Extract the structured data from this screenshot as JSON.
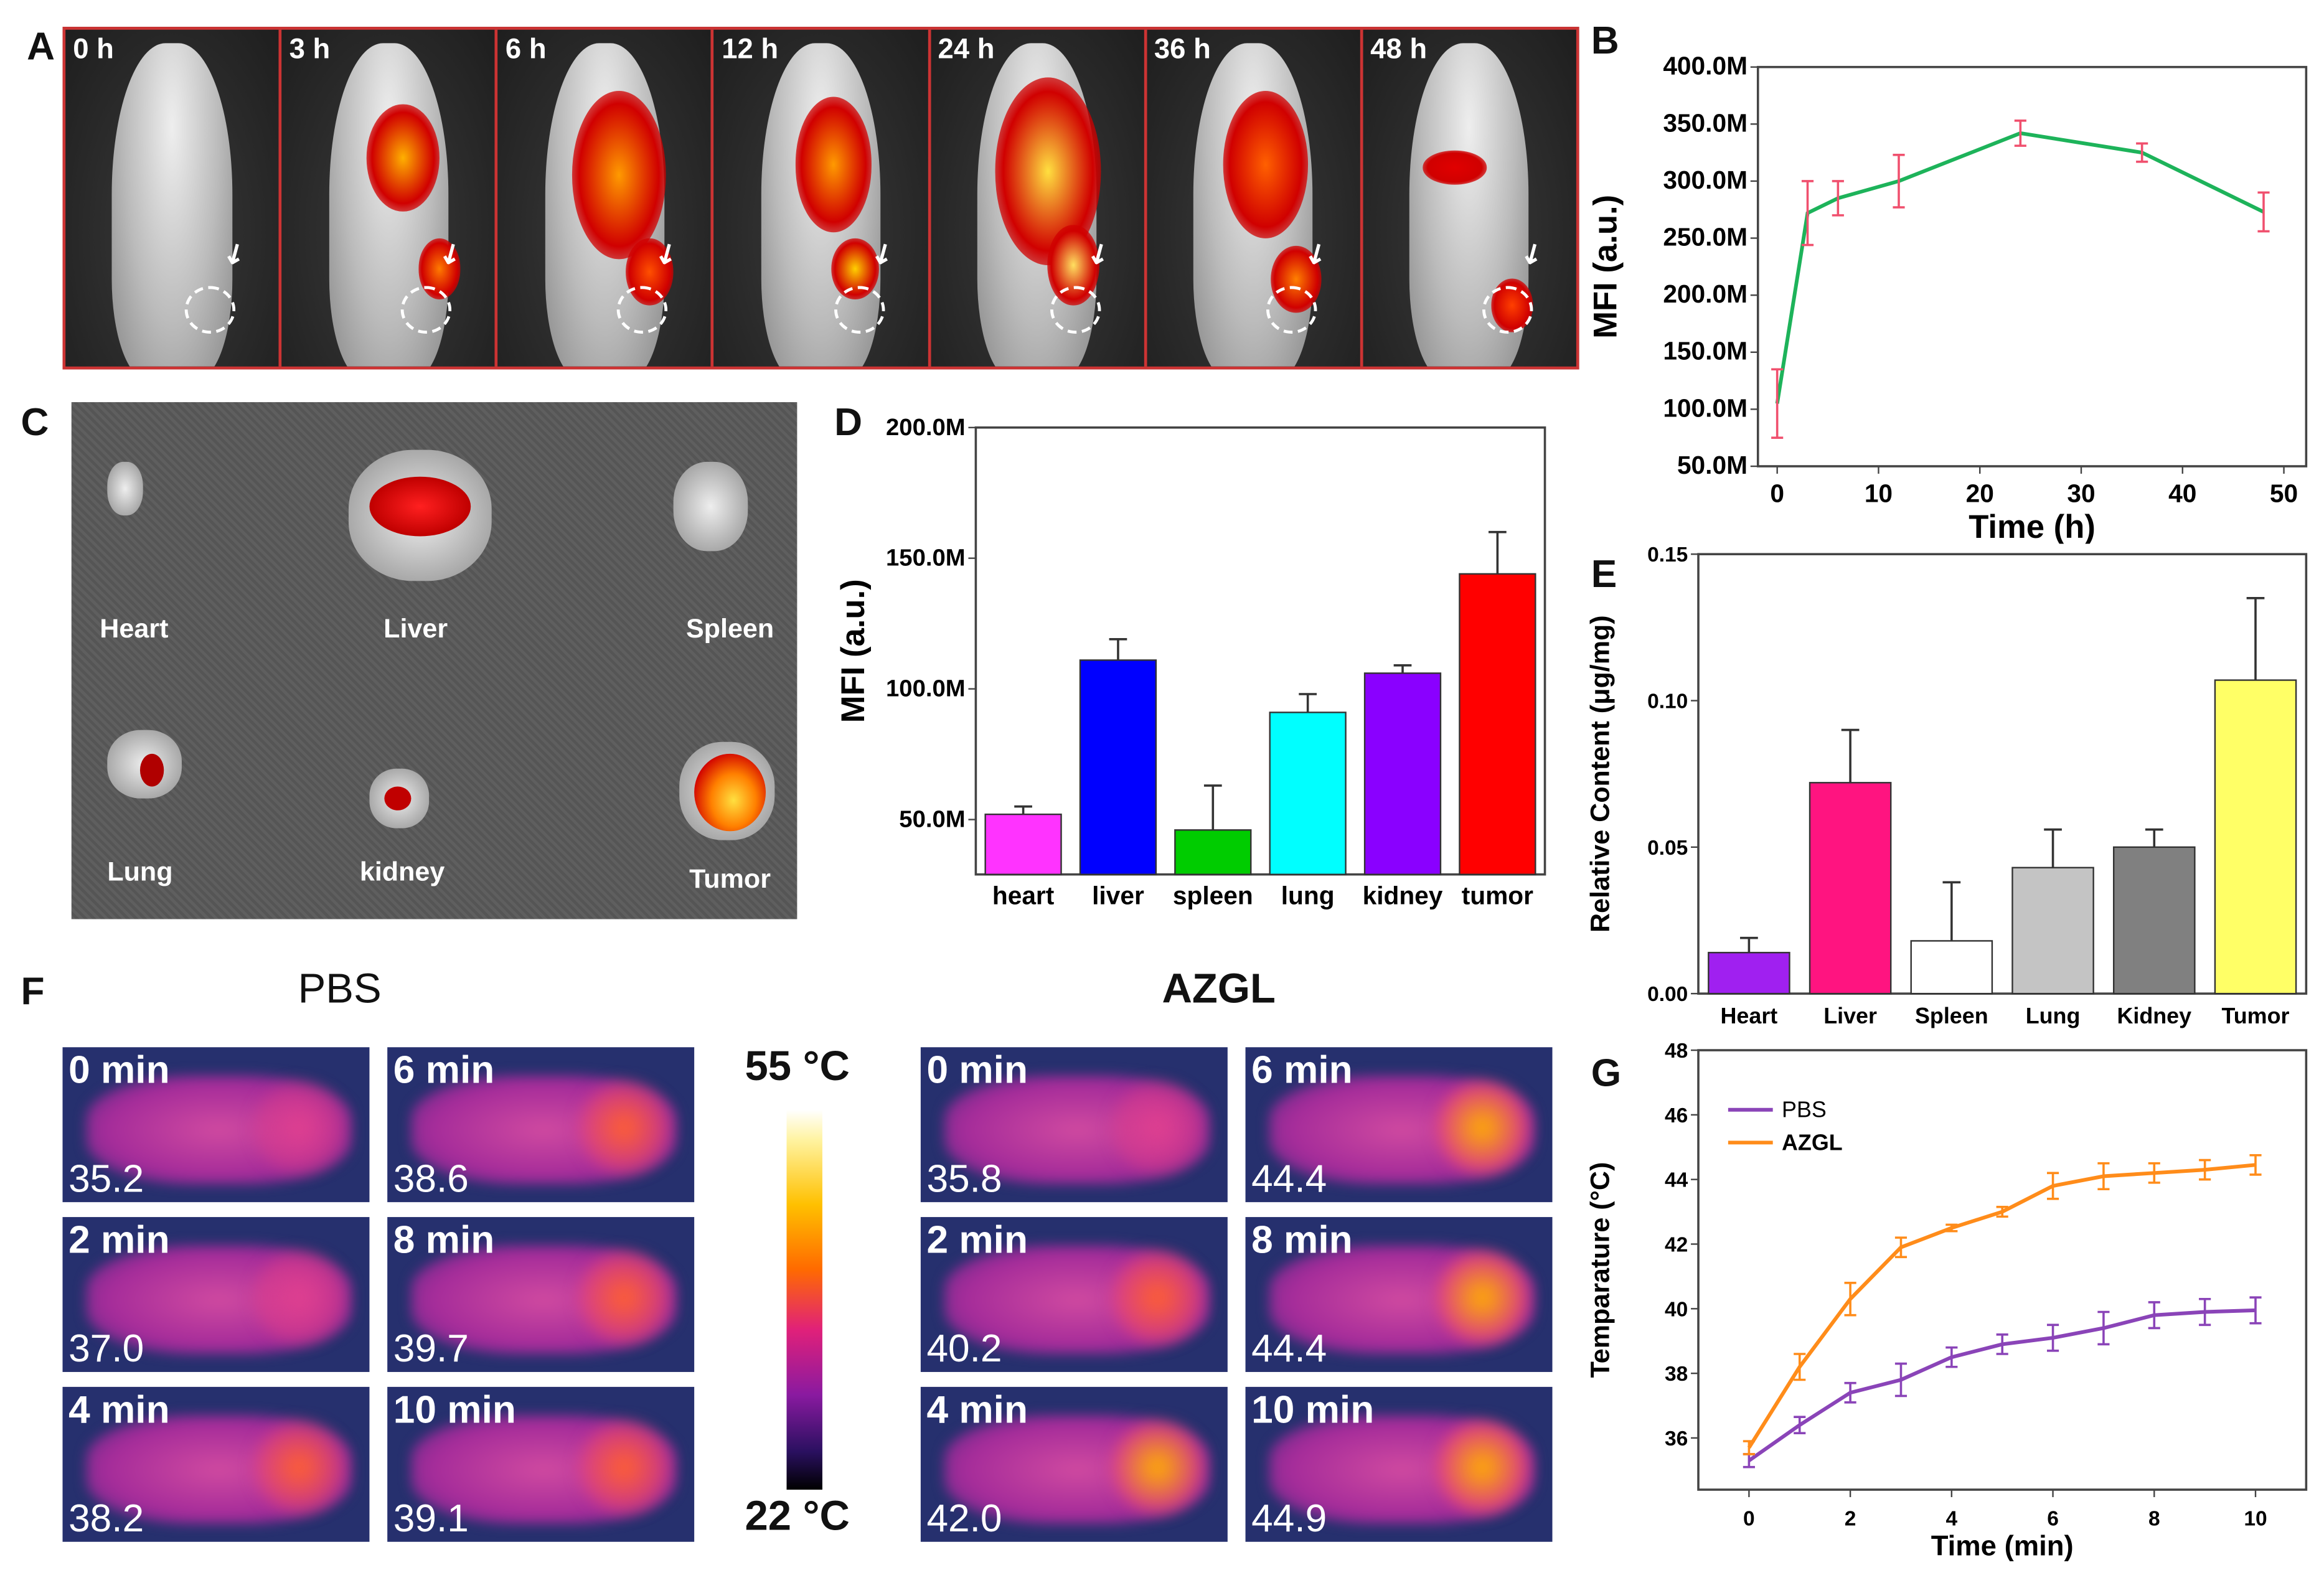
{
  "panels": {
    "A": "A",
    "B": "B",
    "C": "C",
    "D": "D",
    "E": "E",
    "F": "F",
    "G": "G"
  },
  "panelA": {
    "frames": [
      "0 h",
      "3 h",
      "6 h",
      "12 h",
      "24 h",
      "36 h",
      "48 h"
    ]
  },
  "panelC": {
    "organs": [
      "Heart",
      "Liver",
      "Spleen",
      "Lung",
      "kidney",
      "Tumor"
    ]
  },
  "panelF": {
    "pbs_title": "PBS",
    "azgl_title": "AZGL",
    "colorbar_max": "55 °C",
    "colorbar_min": "22 °C",
    "pbs": [
      {
        "time": "0 min",
        "temp": "35.2"
      },
      {
        "time": "6 min",
        "temp": "38.6"
      },
      {
        "time": "2 min",
        "temp": "37.0"
      },
      {
        "time": "8 min",
        "temp": "39.7"
      },
      {
        "time": "4 min",
        "temp": "38.2"
      },
      {
        "time": "10 min",
        "temp": "39.1"
      }
    ],
    "azgl": [
      {
        "time": "0 min",
        "temp": "35.8"
      },
      {
        "time": "6 min",
        "temp": "44.4"
      },
      {
        "time": "2 min",
        "temp": "40.2"
      },
      {
        "time": "8 min",
        "temp": "44.4"
      },
      {
        "time": "4 min",
        "temp": "42.0"
      },
      {
        "time": "10 min",
        "temp": "44.9"
      }
    ]
  },
  "chart_data": [
    {
      "id": "B",
      "type": "line",
      "xlabel": "Time (h)",
      "ylabel": "MFI (a.u.)",
      "x": [
        0,
        3,
        6,
        12,
        24,
        36,
        48
      ],
      "values": [
        105,
        272,
        285,
        300,
        342,
        325,
        273
      ],
      "errors": [
        30,
        28,
        15,
        23,
        11,
        8,
        17
      ],
      "xlim": [
        -1.9,
        52.2
      ],
      "ylim": [
        50,
        400
      ],
      "xticks": [
        0,
        10,
        20,
        30,
        40,
        50
      ],
      "yticks": [
        50,
        100,
        150,
        200,
        250,
        300,
        350,
        400
      ],
      "ytick_labels": [
        "50.0M",
        "100.0M",
        "150.0M",
        "200.0M",
        "250.0M",
        "300.0M",
        "350.0M",
        "400.0M"
      ],
      "line_color": "#1db35a",
      "error_color": "#f0506e"
    },
    {
      "id": "D",
      "type": "bar",
      "xlabel": "",
      "ylabel": "MFI (a.u.)",
      "categories": [
        "heart",
        "liver",
        "spleen",
        "lung",
        "kidney",
        "tumor"
      ],
      "values": [
        52,
        111,
        46,
        91,
        106,
        144
      ],
      "errors": [
        3,
        8,
        17,
        7,
        3,
        16
      ],
      "colors": [
        "#ff33ff",
        "#0000ff",
        "#00cc00",
        "#00ffff",
        "#8a00ff",
        "#ff0000"
      ],
      "ylim": [
        29,
        200
      ],
      "yticks": [
        50,
        100,
        150,
        200
      ],
      "ytick_labels": [
        "50.0M",
        "100.0M",
        "150.0M",
        "200.0M"
      ]
    },
    {
      "id": "E",
      "type": "bar",
      "xlabel": "",
      "ylabel": "Relative Content (μg/mg)",
      "categories": [
        "Heart",
        "Liver",
        "Spleen",
        "Lung",
        "Kidney",
        "Tumor"
      ],
      "values": [
        0.014,
        0.072,
        0.018,
        0.043,
        0.05,
        0.107
      ],
      "errors": [
        0.005,
        0.018,
        0.02,
        0.013,
        0.006,
        0.028
      ],
      "colors": [
        "#a020f0",
        "#ff1480",
        "#ffffff",
        "#c4c4c4",
        "#808080",
        "#ffff66"
      ],
      "ylim": [
        0,
        0.15
      ],
      "yticks": [
        0,
        0.05,
        0.1,
        0.15
      ],
      "ytick_labels": [
        "0.00",
        "0.05",
        "0.10",
        "0.15"
      ]
    },
    {
      "id": "G",
      "type": "line",
      "xlabel": "Time (min)",
      "ylabel": "Temparature (°C)",
      "x": [
        0,
        1,
        2,
        3,
        4,
        5,
        6,
        7,
        8,
        9,
        10
      ],
      "series": [
        {
          "name": "PBS",
          "color": "#8a44b8",
          "values": [
            35.3,
            36.4,
            37.4,
            37.8,
            38.5,
            38.9,
            39.1,
            39.4,
            39.8,
            39.9,
            39.95
          ],
          "errors": [
            0.2,
            0.25,
            0.3,
            0.5,
            0.3,
            0.3,
            0.4,
            0.5,
            0.4,
            0.4,
            0.4
          ]
        },
        {
          "name": "AZGL",
          "color": "#ff8c1a",
          "values": [
            35.7,
            38.2,
            40.3,
            41.9,
            42.5,
            43.0,
            43.8,
            44.1,
            44.2,
            44.3,
            44.45
          ],
          "errors": [
            0.2,
            0.4,
            0.5,
            0.3,
            0.1,
            0.15,
            0.4,
            0.4,
            0.3,
            0.3,
            0.3
          ]
        }
      ],
      "xlim": [
        -1,
        11
      ],
      "ylim": [
        34.4,
        48
      ],
      "xticks": [
        0,
        2,
        4,
        6,
        8,
        10
      ],
      "yticks": [
        36,
        38,
        40,
        42,
        44,
        46,
        48
      ],
      "ytick_labels": [
        "36",
        "38",
        "40",
        "42",
        "44",
        "46",
        "48"
      ],
      "legend": "top-left"
    }
  ]
}
